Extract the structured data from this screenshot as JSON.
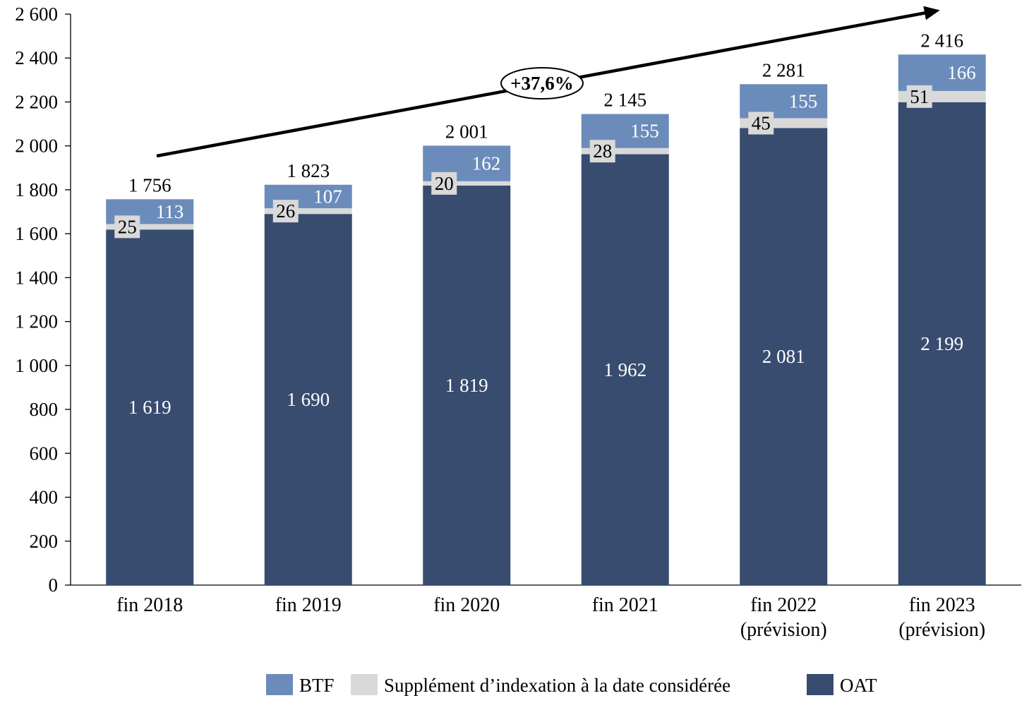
{
  "chart_data": {
    "type": "bar",
    "stacked": true,
    "categories": [
      [
        "fin 2018"
      ],
      [
        "fin 2019"
      ],
      [
        "fin 2020"
      ],
      [
        "fin 2021"
      ],
      [
        "fin 2022",
        "(prévision)"
      ],
      [
        "fin 2023",
        "(prévision)"
      ]
    ],
    "series": [
      {
        "name": "OAT",
        "color": "#374c6f",
        "values": [
          "1 619",
          "1 690",
          "1 819",
          "1 962",
          "2 081",
          "2 199"
        ],
        "numeric": [
          1619,
          1690,
          1819,
          1962,
          2081,
          2199
        ]
      },
      {
        "name": "Supplément d’indexation à la date considérée",
        "color": "#d9d9d9",
        "values": [
          "25",
          "26",
          "20",
          "28",
          "45",
          "51"
        ],
        "numeric": [
          25,
          26,
          20,
          28,
          45,
          51
        ]
      },
      {
        "name": "BTF",
        "color": "#6b8cbb",
        "values": [
          "113",
          "107",
          "162",
          "155",
          "155",
          "166"
        ],
        "numeric": [
          113,
          107,
          162,
          155,
          155,
          166
        ]
      }
    ],
    "totals": [
      "1 756",
      "1 823",
      "2 001",
      "2 145",
      "2 281",
      "2 416"
    ],
    "totals_numeric": [
      1756,
      1823,
      2001,
      2145,
      2281,
      2416
    ],
    "ylim": [
      0,
      2600
    ],
    "yticks": [
      "0",
      "200",
      "400",
      "600",
      "800",
      "1 000",
      "1 200",
      "1 400",
      "1 600",
      "1 800",
      "2 000",
      "2 200",
      "2 400",
      "2 600"
    ],
    "ytick_values": [
      0,
      200,
      400,
      600,
      800,
      1000,
      1200,
      1400,
      1600,
      1800,
      2000,
      2200,
      2400,
      2600
    ],
    "annotation": "+37,6%",
    "legend": {
      "position": "bottom",
      "items": [
        {
          "label": "BTF",
          "color": "#6b8cbb"
        },
        {
          "label": "Supplément d’indexation à la date considérée",
          "color": "#d9d9d9"
        },
        {
          "label": "OAT",
          "color": "#374c6f"
        }
      ]
    },
    "grid": false
  }
}
